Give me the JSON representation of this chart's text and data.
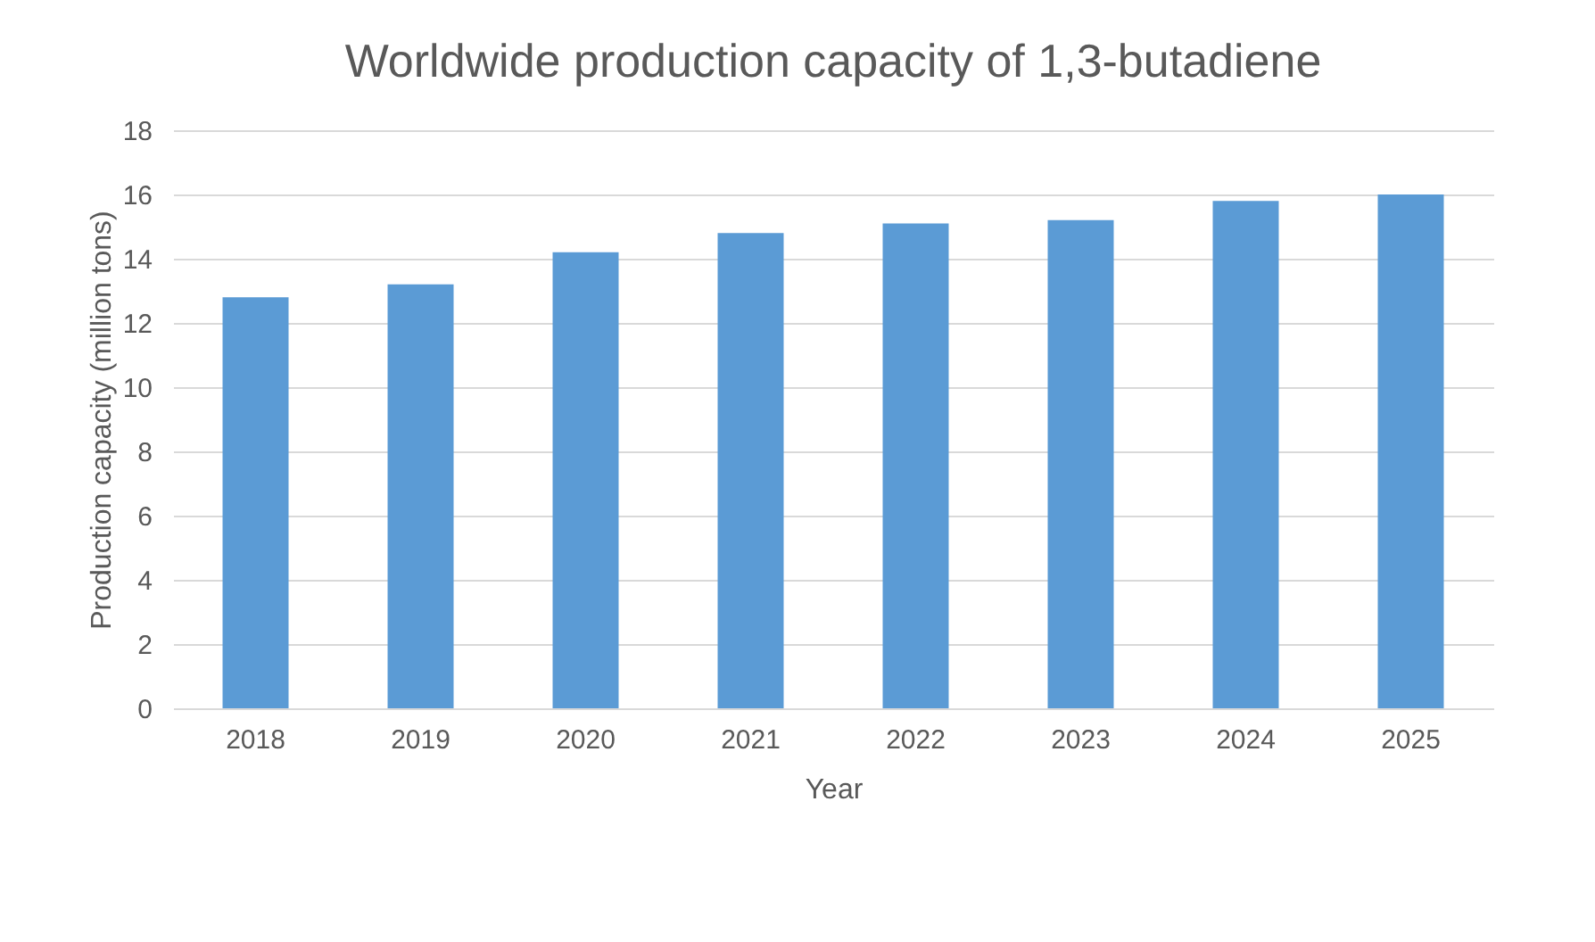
{
  "chart_data": {
    "type": "bar",
    "title": "Worldwide production capacity of 1,3-butadiene",
    "xlabel": "Year",
    "ylabel": "Production capacity (million tons)",
    "categories": [
      "2018",
      "2019",
      "2020",
      "2021",
      "2022",
      "2023",
      "2024",
      "2025"
    ],
    "values": [
      12.8,
      13.2,
      14.2,
      14.8,
      15.1,
      15.2,
      15.8,
      16.0
    ],
    "color": "#5b9bd5",
    "ylim": [
      0,
      18
    ],
    "yticks": [
      0,
      2,
      4,
      6,
      8,
      10,
      12,
      14,
      16,
      18
    ],
    "grid": "y"
  }
}
